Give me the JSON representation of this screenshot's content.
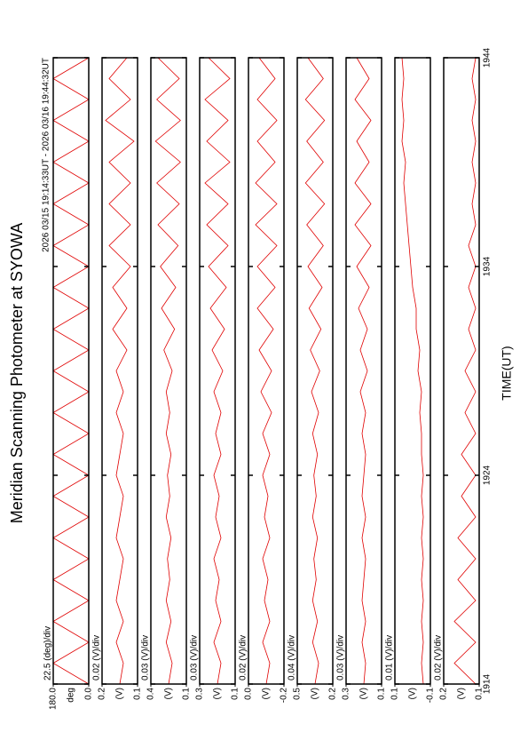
{
  "chart_data": {
    "type": "line",
    "title": "Meridian Scanning Photometer at SYOWA",
    "subtitle": "2026 03/15 19:14:33UT - 2026 03/16 19:44:32UT",
    "x_label": "TIME(UT)",
    "xlim": [
      0,
      30
    ],
    "xticks": [
      {
        "value": 0,
        "label": "1914"
      },
      {
        "value": 10,
        "label": "1924"
      },
      {
        "value": 20,
        "label": "1934"
      },
      {
        "value": 30,
        "label": "1944"
      }
    ],
    "x": [
      0,
      1,
      2,
      3,
      4,
      5,
      6,
      7,
      8,
      9,
      10,
      11,
      12,
      13,
      14,
      15,
      16,
      17,
      18,
      19,
      20,
      21,
      22,
      23,
      24,
      25,
      26,
      27,
      28,
      29,
      30
    ],
    "panels": [
      {
        "scale_label": "22.5 (deg)/div",
        "unit": "deg",
        "color": "#e00000",
        "ylim": [
          0,
          180
        ],
        "yticks": [
          {
            "value": 0,
            "label": "0.0"
          },
          {
            "value": 180,
            "label": "180.0"
          }
        ],
        "values": [
          0,
          180,
          0,
          180,
          0,
          180,
          0,
          180,
          0,
          180,
          0,
          180,
          0,
          180,
          0,
          180,
          0,
          180,
          0,
          180,
          0,
          180,
          0,
          180,
          0,
          180,
          0,
          180,
          0,
          180,
          0
        ]
      },
      {
        "scale_label": "0.02 (V)/div",
        "unit": "(V)",
        "color": "#e00000",
        "ylim": [
          0.1,
          0.2
        ],
        "yticks": [
          0.1,
          0.2
        ],
        "values": [
          0.15,
          0.14,
          0.16,
          0.14,
          0.16,
          0.15,
          0.14,
          0.16,
          0.15,
          0.14,
          0.16,
          0.15,
          0.14,
          0.16,
          0.14,
          0.16,
          0.13,
          0.17,
          0.13,
          0.17,
          0.12,
          0.18,
          0.12,
          0.18,
          0.12,
          0.18,
          0.11,
          0.19,
          0.12,
          0.18,
          0.13
        ]
      },
      {
        "scale_label": "0.03 (V)/div",
        "unit": "(V)",
        "color": "#e00000",
        "ylim": [
          0.1,
          0.4
        ],
        "yticks": [
          0.1,
          0.4
        ],
        "values": [
          0.25,
          0.22,
          0.27,
          0.23,
          0.27,
          0.24,
          0.26,
          0.23,
          0.27,
          0.24,
          0.26,
          0.23,
          0.27,
          0.24,
          0.27,
          0.22,
          0.29,
          0.2,
          0.31,
          0.19,
          0.32,
          0.17,
          0.34,
          0.16,
          0.35,
          0.15,
          0.36,
          0.15,
          0.35,
          0.16,
          0.34
        ]
      },
      {
        "scale_label": "0.03 (V)/div",
        "unit": "(V)",
        "color": "#e00000",
        "ylim": [
          0.1,
          0.3
        ],
        "yticks": [
          0.1,
          0.3
        ],
        "values": [
          0.2,
          0.18,
          0.22,
          0.18,
          0.21,
          0.19,
          0.22,
          0.18,
          0.21,
          0.19,
          0.22,
          0.18,
          0.21,
          0.18,
          0.22,
          0.17,
          0.23,
          0.16,
          0.24,
          0.15,
          0.25,
          0.14,
          0.26,
          0.14,
          0.27,
          0.13,
          0.26,
          0.14,
          0.27,
          0.13,
          0.25
        ]
      },
      {
        "scale_label": "0.02 (V)/div",
        "unit": "(V)",
        "color": "#e00000",
        "ylim": [
          -0.2,
          0
        ],
        "yticks": [
          -0.2,
          {
            "value": 0,
            "label": "0.0"
          }
        ],
        "values": [
          -0.1,
          -0.12,
          -0.08,
          -0.12,
          -0.09,
          -0.11,
          -0.08,
          -0.12,
          -0.09,
          -0.11,
          -0.08,
          -0.12,
          -0.08,
          -0.13,
          -0.07,
          -0.13,
          -0.06,
          -0.14,
          -0.05,
          -0.15,
          -0.05,
          -0.16,
          -0.04,
          -0.16,
          -0.04,
          -0.15,
          -0.05,
          -0.16,
          -0.05,
          -0.15,
          -0.06
        ]
      },
      {
        "scale_label": "0.04 (V)/div",
        "unit": "(V)",
        "color": "#e00000",
        "ylim": [
          0.2,
          0.5
        ],
        "yticks": [
          0.2,
          0.5
        ],
        "values": [
          0.35,
          0.32,
          0.37,
          0.33,
          0.37,
          0.34,
          0.36,
          0.33,
          0.37,
          0.34,
          0.36,
          0.33,
          0.37,
          0.32,
          0.38,
          0.31,
          0.39,
          0.3,
          0.4,
          0.29,
          0.41,
          0.28,
          0.42,
          0.27,
          0.43,
          0.28,
          0.42,
          0.27,
          0.43,
          0.28,
          0.41
        ]
      },
      {
        "scale_label": "0.03 (V)/div",
        "unit": "(V)",
        "color": "#e00000",
        "ylim": [
          0.1,
          0.3
        ],
        "yticks": [
          0.1,
          0.3
        ],
        "values": [
          0.2,
          0.19,
          0.21,
          0.19,
          0.21,
          0.2,
          0.19,
          0.21,
          0.19,
          0.21,
          0.2,
          0.19,
          0.21,
          0.19,
          0.22,
          0.18,
          0.22,
          0.18,
          0.23,
          0.17,
          0.24,
          0.16,
          0.25,
          0.16,
          0.25,
          0.17,
          0.24,
          0.16,
          0.25,
          0.17,
          0.24
        ]
      },
      {
        "scale_label": "0.01 (V)/div",
        "unit": "(V)",
        "color": "#e00000",
        "ylim": [
          -0.1,
          0.1
        ],
        "yticks": [
          -0.1,
          0.1
        ],
        "values": [
          -0.06,
          -0.05,
          -0.06,
          -0.05,
          -0.06,
          -0.05,
          -0.06,
          -0.05,
          -0.06,
          -0.05,
          -0.06,
          -0.05,
          -0.05,
          -0.04,
          -0.05,
          -0.03,
          -0.04,
          -0.02,
          -0.02,
          0,
          0.01,
          0.02,
          0.03,
          0.04,
          0.05,
          0.04,
          0.06,
          0.05,
          0.06,
          0.05,
          0.06
        ]
      },
      {
        "scale_label": "0.02 (V)/div",
        "unit": "(V)",
        "color": "#e00000",
        "ylim": [
          0.1,
          0.2
        ],
        "yticks": [
          0.1,
          0.2
        ],
        "values": [
          0.11,
          0.17,
          0.11,
          0.17,
          0.11,
          0.16,
          0.11,
          0.16,
          0.11,
          0.15,
          0.11,
          0.15,
          0.11,
          0.14,
          0.11,
          0.14,
          0.11,
          0.13,
          0.11,
          0.13,
          0.11,
          0.13,
          0.11,
          0.12,
          0.11,
          0.12,
          0.11,
          0.12,
          0.11,
          0.12,
          0.11
        ]
      }
    ]
  }
}
